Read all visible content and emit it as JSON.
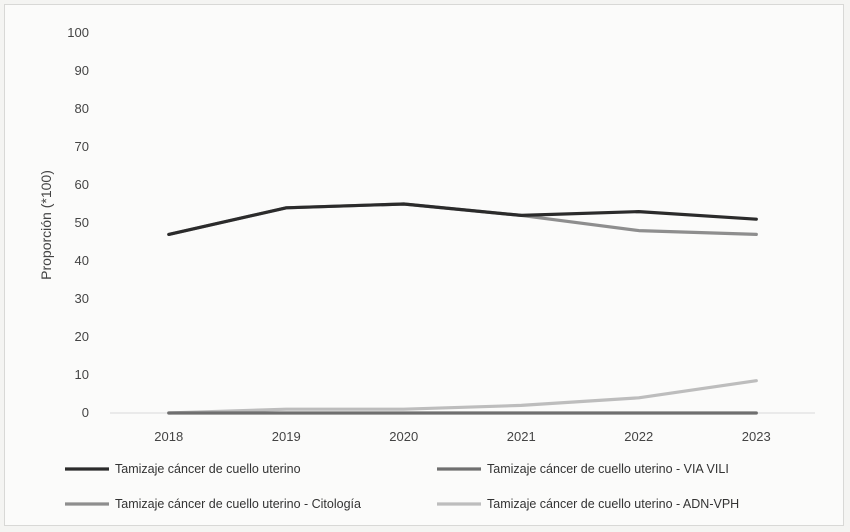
{
  "chart_data": {
    "type": "line",
    "title": "",
    "xlabel": "",
    "ylabel": "Proporción (*100)",
    "x": [
      "2018",
      "2019",
      "2020",
      "2021",
      "2022",
      "2023"
    ],
    "ylim": [
      0,
      100
    ],
    "yticks": [
      "0",
      "10",
      "20",
      "30",
      "40",
      "50",
      "60",
      "70",
      "80",
      "90",
      "100"
    ],
    "grid": false,
    "legend": "bottom",
    "series": [
      {
        "name": "Tamizaje cáncer de cuello uterino",
        "values": [
          47,
          54,
          55,
          52,
          53,
          51
        ],
        "color": "#2b2b2b"
      },
      {
        "name": "Tamizaje cáncer de cuello uterino - VIA VILI",
        "values": [
          0,
          0,
          0,
          0,
          0,
          0
        ],
        "color": "#6f6f6f"
      },
      {
        "name": "Tamizaje cáncer de cuello uterino - Citología",
        "values": [
          47,
          54,
          55,
          52,
          48,
          47
        ],
        "color": "#8e8e8e"
      },
      {
        "name": "Tamizaje cáncer de cuello uterino - ADN-VPH",
        "values": [
          0,
          1,
          1,
          2,
          4,
          8.5
        ],
        "color": "#bdbdbd"
      }
    ]
  }
}
